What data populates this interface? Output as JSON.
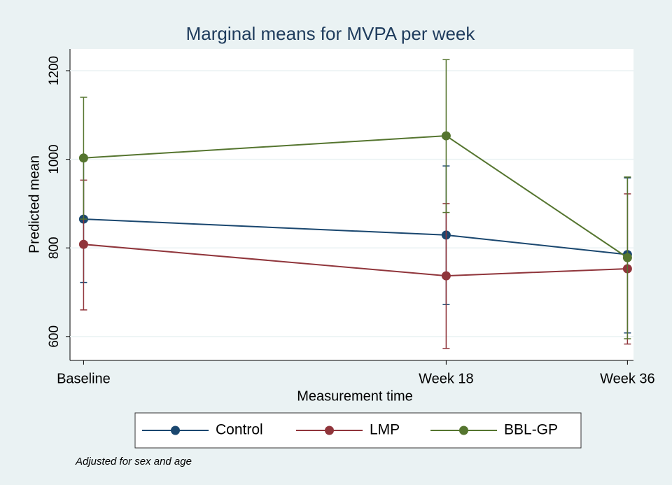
{
  "chart_data": {
    "type": "line",
    "title": "Marginal means for MVPA per week",
    "xlabel": "Measurement time",
    "ylabel": "Predicted mean",
    "note": "Adjusted for sex and age",
    "x": [
      0,
      24,
      36
    ],
    "xticks": [
      {
        "value": 0,
        "label": "Baseline"
      },
      {
        "value": 24,
        "label": "Week 18"
      },
      {
        "value": 36,
        "label": "Week 36"
      }
    ],
    "xlim": [
      -0.9,
      36.4
    ],
    "ylim": [
      546,
      1249
    ],
    "yticks": [
      600,
      800,
      1000,
      1200
    ],
    "grid": true,
    "series": [
      {
        "name": "Control",
        "color": "#1a476f",
        "values": [
          865,
          829,
          785
        ],
        "lower": [
          722,
          672,
          608
        ],
        "upper": [
          1008,
          985,
          958
        ]
      },
      {
        "name": "LMP",
        "color": "#90353b",
        "values": [
          808,
          737,
          753
        ],
        "lower": [
          660,
          573,
          583
        ],
        "upper": [
          953,
          900,
          922
        ]
      },
      {
        "name": "BBL-GP",
        "color": "#55752f",
        "values": [
          1003,
          1053,
          778
        ],
        "lower": [
          865,
          880,
          595
        ],
        "upper": [
          1140,
          1225,
          960
        ]
      }
    ],
    "legend": "bottom"
  }
}
